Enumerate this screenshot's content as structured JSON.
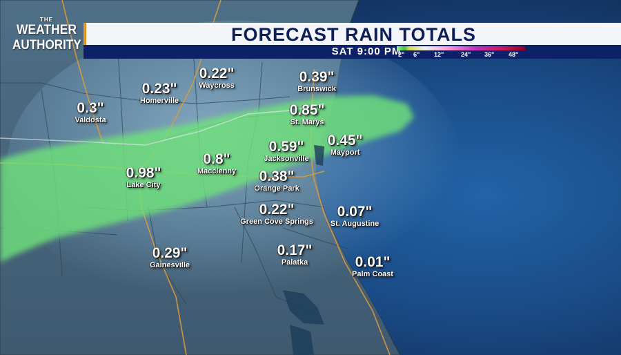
{
  "header": {
    "title": "FORECAST RAIN TOTALS",
    "subtitle": "SAT 9:00 PM",
    "logo_line1": "THE",
    "logo_line2": "WEATHER",
    "logo_line3": "AUTHORITY"
  },
  "legend": {
    "labels": [
      "2\"",
      "6\"",
      "12\"",
      "24\"",
      "36\"",
      "48\""
    ]
  },
  "colors": {
    "ocean": "#1a4b86",
    "land": "#6f8fa3",
    "rain_green": "#6fe07a",
    "title_text": "#0e1f57",
    "subtitle_bar": "#0d2168",
    "accent": "#f29a1c"
  },
  "cities": [
    {
      "id": "valdosta",
      "amount": "0.3\"",
      "name": "Valdosta"
    },
    {
      "id": "homerville",
      "amount": "0.23\"",
      "name": "Homerville"
    },
    {
      "id": "waycross",
      "amount": "0.22\"",
      "name": "Waycross"
    },
    {
      "id": "brunswick",
      "amount": "0.39\"",
      "name": "Brunswick"
    },
    {
      "id": "st-marys",
      "amount": "0.85\"",
      "name": "St. Marys"
    },
    {
      "id": "jacksonville",
      "amount": "0.59\"",
      "name": "Jacksonville"
    },
    {
      "id": "mayport",
      "amount": "0.45\"",
      "name": "Mayport"
    },
    {
      "id": "lake-city",
      "amount": "0.98\"",
      "name": "Lake City"
    },
    {
      "id": "macclenny",
      "amount": "0.8\"",
      "name": "Macclenny"
    },
    {
      "id": "orange-park",
      "amount": "0.38\"",
      "name": "Orange Park"
    },
    {
      "id": "green-cove-springs",
      "amount": "0.22\"",
      "name": "Green Cove Springs"
    },
    {
      "id": "st-augustine",
      "amount": "0.07\"",
      "name": "St. Augustine"
    },
    {
      "id": "gainesville",
      "amount": "0.29\"",
      "name": "Gainesville"
    },
    {
      "id": "palatka",
      "amount": "0.17\"",
      "name": "Palatka"
    },
    {
      "id": "palm-coast",
      "amount": "0.01\"",
      "name": "Palm Coast"
    }
  ]
}
